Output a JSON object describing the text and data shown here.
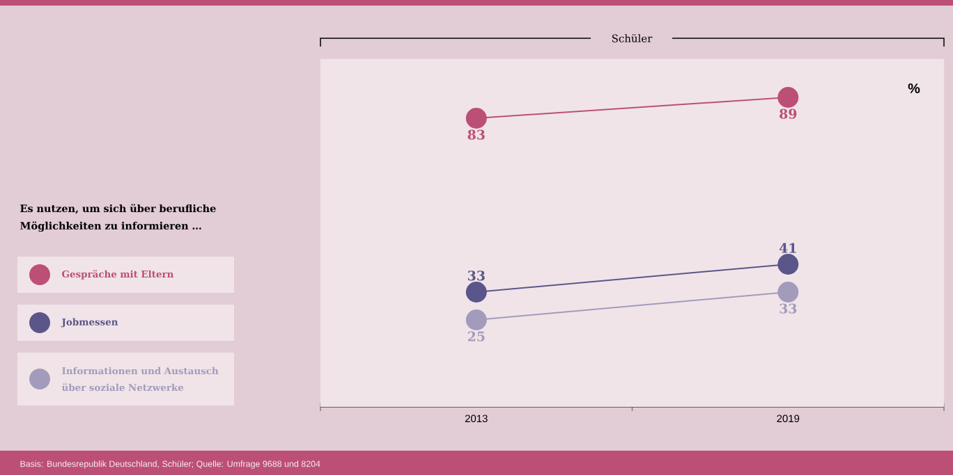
{
  "chart_data": {
    "type": "line",
    "title": "Schüler",
    "legend_title": "Es nutzen, um sich über berufliche Möglichkeiten zu informieren …",
    "categories": [
      "2013",
      "2019"
    ],
    "series": [
      {
        "name": "Gespräche mit Eltern",
        "color": "#bc4f76",
        "values": [
          83,
          89
        ]
      },
      {
        "name": "Jobmessen",
        "color": "#5b5689",
        "values": [
          33,
          41
        ]
      },
      {
        "name": "Informationen und Austausch über soziale Netzwerke",
        "color": "#a29bbb",
        "values": [
          25,
          33
        ]
      }
    ],
    "ylim": [
      0,
      100
    ],
    "data_labels": true,
    "marker": "circle",
    "line_style": "solid",
    "grid": false,
    "legend": "left",
    "annotations": [
      "%",
      "Basis: Bundesrepublik Deutschland, Schüler; Quelle: Umfrage 9688 und 8204"
    ]
  }
}
